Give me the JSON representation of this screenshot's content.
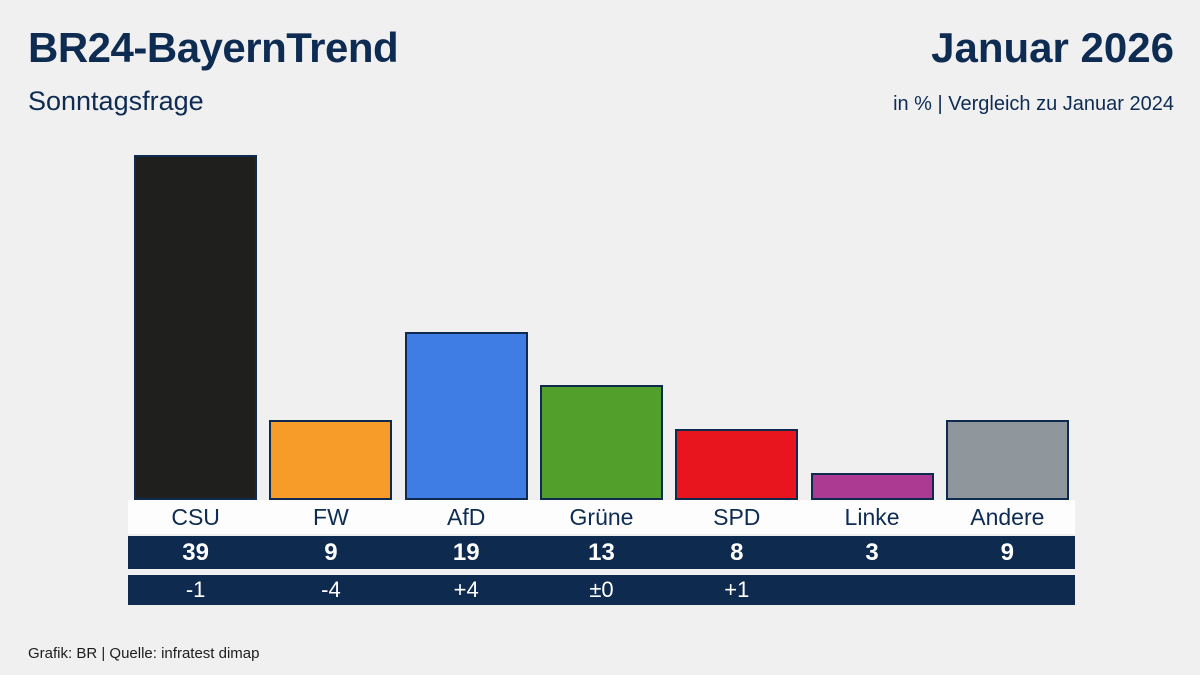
{
  "header": {
    "title": "BR24-BayernTrend",
    "date": "Januar 2026",
    "subtitle_left": "Sonntagsfrage",
    "subtitle_right": "in % | Vergleich zu Januar 2024"
  },
  "footer": {
    "source": "Grafik: BR | Quelle: infratest dimap"
  },
  "colors": {
    "navy": "#0e2a4f",
    "background": "#f0f0f1",
    "strip_text": "#ffffff"
  },
  "chart_data": {
    "type": "bar",
    "title": "BR24-BayernTrend Sonntagsfrage",
    "subtitle": "Januar 2026",
    "unit": "in % | Vergleich zu Januar 2024",
    "categories": [
      "CSU",
      "FW",
      "AfD",
      "Grüne",
      "SPD",
      "Linke",
      "Andere"
    ],
    "values": [
      39,
      9,
      19,
      13,
      8,
      3,
      9
    ],
    "changes": [
      "-1",
      "-4",
      "+4",
      "±0",
      "+1",
      "",
      ""
    ],
    "colors": [
      "#1f1f1d",
      "#f79b29",
      "#3f7de4",
      "#529f2b",
      "#e8141e",
      "#ad3a92",
      "#8f969c"
    ],
    "xlabel": "",
    "ylabel": "",
    "ylim": [
      0,
      40
    ],
    "grid": false,
    "legend": false,
    "source": "Grafik: BR | Quelle: infratest dimap"
  }
}
